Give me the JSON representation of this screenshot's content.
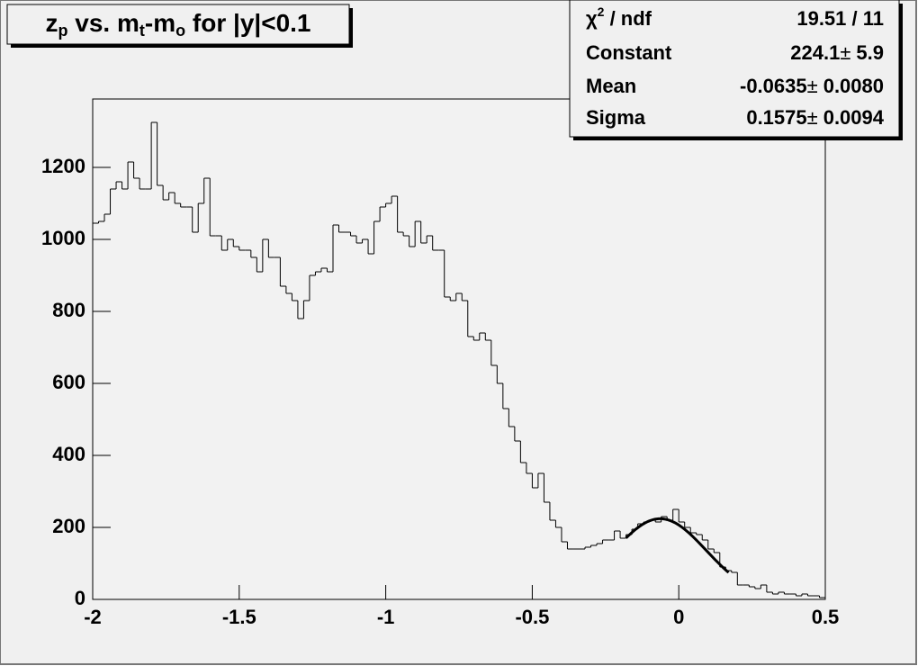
{
  "chart_data": {
    "type": "histogram",
    "title": [
      "z",
      "p",
      " vs. m",
      "t",
      "-m",
      "o",
      " for |y|<0.1"
    ],
    "bins": [
      -2,
      -1.98,
      -1.96,
      -1.94,
      -1.92,
      -1.9,
      -1.88,
      -1.86,
      -1.84,
      -1.82,
      -1.8,
      -1.78,
      -1.76,
      -1.74,
      -1.72,
      -1.7,
      -1.68,
      -1.66,
      -1.64,
      -1.62,
      -1.6,
      -1.58,
      -1.56,
      -1.54,
      -1.52,
      -1.5,
      -1.48,
      -1.46,
      -1.44,
      -1.42,
      -1.4,
      -1.38,
      -1.36,
      -1.34,
      -1.32,
      -1.3,
      -1.28,
      -1.26,
      -1.24,
      -1.22,
      -1.2,
      -1.18,
      -1.16,
      -1.14,
      -1.12,
      -1.1,
      -1.08,
      -1.06,
      -1.04,
      -1.02,
      -1,
      -0.98,
      -0.96,
      -0.94,
      -0.92,
      -0.9,
      -0.88,
      -0.86,
      -0.84,
      -0.82,
      -0.8,
      -0.78,
      -0.76,
      -0.74,
      -0.72,
      -0.7,
      -0.68,
      -0.66,
      -0.64,
      -0.62,
      -0.6,
      -0.58,
      -0.56,
      -0.54,
      -0.52,
      -0.5,
      -0.48,
      -0.46,
      -0.44,
      -0.42,
      -0.4,
      -0.38,
      -0.36,
      -0.34,
      -0.32,
      -0.3,
      -0.28,
      -0.26,
      -0.24,
      -0.22,
      -0.2,
      -0.18,
      -0.16,
      -0.14,
      -0.12,
      -0.1,
      -0.08,
      -0.06,
      -0.04,
      -0.02,
      0,
      0.02,
      0.04,
      0.06,
      0.08,
      0.1,
      0.12,
      0.14,
      0.16,
      0.18,
      0.2,
      0.22,
      0.24,
      0.26,
      0.28,
      0.3,
      0.32,
      0.34,
      0.36,
      0.38,
      0.4,
      0.42,
      0.44,
      0.46,
      0.48,
      0.5
    ],
    "values": [
      1045,
      1050,
      1070,
      1140,
      1160,
      1140,
      1215,
      1170,
      1140,
      1140,
      1325,
      1150,
      1110,
      1130,
      1100,
      1090,
      1090,
      1020,
      1100,
      1170,
      1010,
      1010,
      970,
      1000,
      980,
      970,
      970,
      950,
      910,
      1000,
      950,
      950,
      870,
      850,
      830,
      780,
      830,
      900,
      910,
      920,
      910,
      1040,
      1020,
      1020,
      1010,
      990,
      1000,
      960,
      1050,
      1090,
      1100,
      1120,
      1020,
      1010,
      980,
      1050,
      990,
      1010,
      970,
      970,
      840,
      830,
      850,
      830,
      730,
      720,
      740,
      720,
      650,
      600,
      530,
      480,
      440,
      380,
      350,
      310,
      350,
      270,
      220,
      200,
      160,
      140,
      140,
      140,
      145,
      150,
      155,
      165,
      165,
      190,
      170,
      180,
      195,
      210,
      215,
      220,
      215,
      230,
      220,
      250,
      215,
      200,
      185,
      180,
      165,
      140,
      130,
      90,
      80,
      75,
      40,
      40,
      35,
      30,
      40,
      20,
      15,
      20,
      15,
      15,
      10,
      15,
      10,
      10,
      5
    ],
    "color": "#000000",
    "xlim": [
      -2,
      0.5
    ],
    "xticks": [
      -2,
      -1.5,
      -1,
      -0.5,
      0,
      0.5
    ],
    "ylim": [
      0,
      1390
    ],
    "yticks": [
      0,
      200,
      400,
      600,
      800,
      1000,
      1200
    ],
    "fit": {
      "constant": 224.1,
      "constant_error": 5.9,
      "mean": -0.0635,
      "mean_error": {
        "value": 0.008,
        "label": "0.0080"
      },
      "sigma": 0.1575,
      "sigma_error": 0.0094,
      "xlim": [
        -0.18,
        0.17
      ],
      "color": "#000000"
    },
    "stats": {
      "chi2_label": [
        "χ",
        "2",
        " / ndf"
      ],
      "chi2_ndf": "19.51 / 11",
      "constant_label": "Constant",
      "mean_label": "Mean",
      "sigma_label": "Sigma",
      "pm": "±"
    }
  }
}
